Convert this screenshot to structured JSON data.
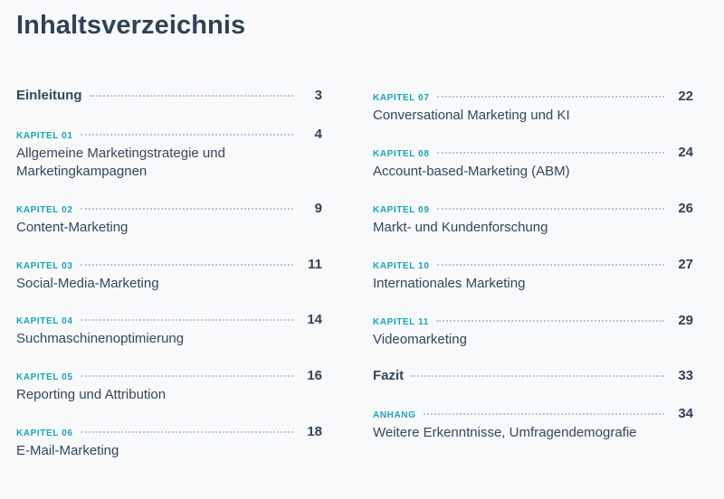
{
  "title": "Inhaltsverzeichnis",
  "left_entries": [
    {
      "kicker": "",
      "title": "Einleitung",
      "page": "3"
    },
    {
      "kicker": "KAPITEL 01",
      "title": "Allgemeine Marketingstrategie und Marketingkampagnen",
      "page": "4"
    },
    {
      "kicker": "KAPITEL 02",
      "title": "Content-Marketing",
      "page": "9"
    },
    {
      "kicker": "KAPITEL 03",
      "title": "Social-Media-Marketing",
      "page": "11"
    },
    {
      "kicker": "KAPITEL 04",
      "title": "Suchmaschinenoptimierung",
      "page": "14"
    },
    {
      "kicker": "KAPITEL 05",
      "title": "Reporting und Attribution",
      "page": "16"
    },
    {
      "kicker": "KAPITEL 06",
      "title": "E-Mail-Marketing",
      "page": "18"
    }
  ],
  "right_entries": [
    {
      "kicker": "KAPITEL 07",
      "title": "Conversational Marketing und KI",
      "page": "22"
    },
    {
      "kicker": "KAPITEL 08",
      "title": "Account-based-Marketing (ABM)",
      "page": "24"
    },
    {
      "kicker": "KAPITEL 09",
      "title": "Markt- und Kundenforschung",
      "page": "26"
    },
    {
      "kicker": "KAPITEL 10",
      "title": "Internationales Marketing",
      "page": "27"
    },
    {
      "kicker": "KAPITEL 11",
      "title": "Videomarketing",
      "page": "29"
    },
    {
      "kicker": "",
      "title": "Fazit",
      "page": "33"
    },
    {
      "kicker": "ANHANG",
      "title": "Weitere Erkenntnisse, Umfragendemografie",
      "page": "34"
    }
  ]
}
